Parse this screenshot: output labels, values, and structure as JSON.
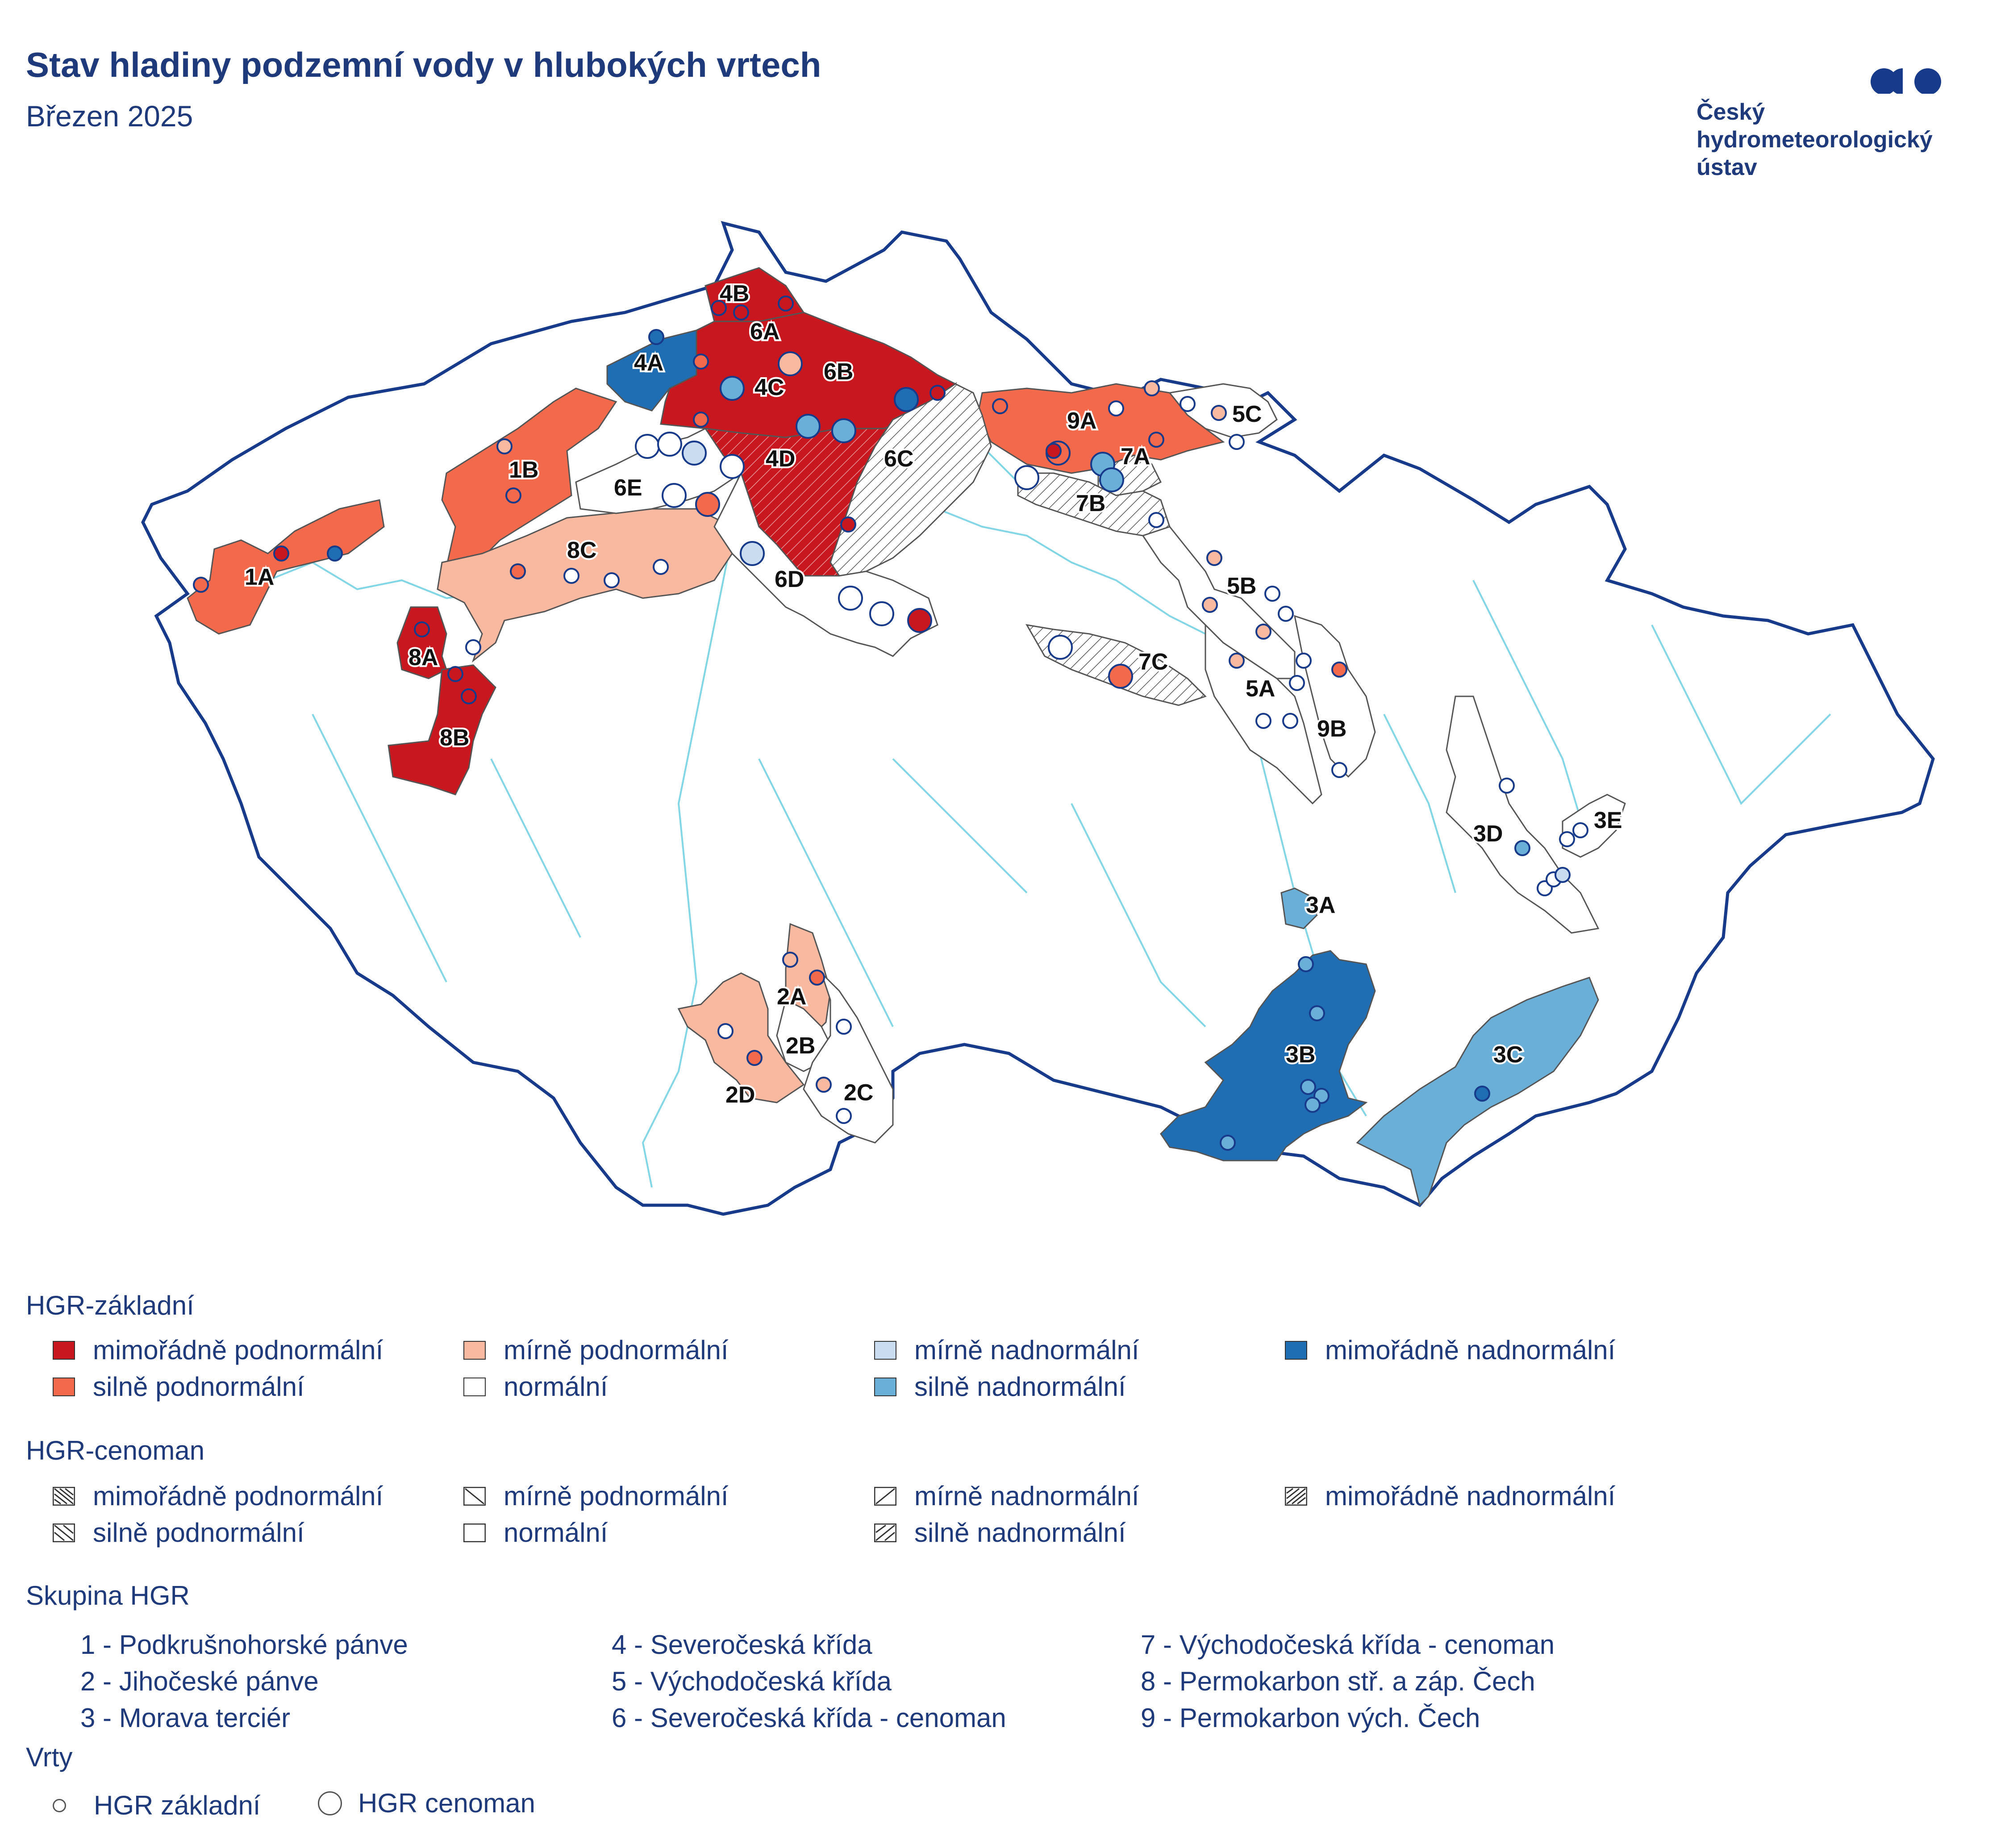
{
  "header": {
    "title": "Stav hladiny podzemní vody v hlubokých vrtech",
    "subtitle": "Březen 2025"
  },
  "logo": {
    "line1": "Český",
    "line2": "hydrometeorologický",
    "line3": "ústav",
    "mark_color": "#173a8a"
  },
  "colors": {
    "extreme_below": "#c8171e",
    "strong_below": "#f26a4b",
    "mild_below": "#f9b9a0",
    "normal": "#ffffff",
    "mild_above": "#c9dcf0",
    "strong_above": "#6aafd8",
    "extreme_above": "#1f6db3",
    "border": "#173a8a",
    "river": "#6ccfe0"
  },
  "map": {
    "region_labels": [
      "1A",
      "1B",
      "2A",
      "2B",
      "2C",
      "2D",
      "3A",
      "3B",
      "3C",
      "3D",
      "3E",
      "4A",
      "4B",
      "4C",
      "4D",
      "5A",
      "5B",
      "5C",
      "6A",
      "6B",
      "6C",
      "6D",
      "6E",
      "7A",
      "7B",
      "7C",
      "8A",
      "8B",
      "8C",
      "9A",
      "9B"
    ]
  },
  "legend": {
    "basic": {
      "heading": "HGR-základní",
      "items": [
        {
          "label": "mimořádně podnormální",
          "color": "#c8171e"
        },
        {
          "label": "mírně podnormální",
          "color": "#f9b9a0"
        },
        {
          "label": "mírně nadnormální",
          "color": "#c9dcf0"
        },
        {
          "label": "mimořádně nadnormální",
          "color": "#1f6db3"
        },
        {
          "label": "silně podnormální",
          "color": "#f26a4b"
        },
        {
          "label": "normální",
          "color": "#ffffff"
        },
        {
          "label": "silně nadnormální",
          "color": "#6aafd8"
        }
      ]
    },
    "cenoman": {
      "heading": "HGR-cenoman",
      "items": [
        {
          "label": "mimořádně podnormální"
        },
        {
          "label": "mírně podnormální"
        },
        {
          "label": "mírně nadnormální"
        },
        {
          "label": "mimořádně nadnormální"
        },
        {
          "label": "silně podnormální"
        },
        {
          "label": "normální"
        },
        {
          "label": "silně nadnormální"
        }
      ]
    },
    "groups": {
      "heading": "Skupina HGR",
      "items": [
        "1 - Podkrušnohorské pánve",
        "4 - Severočeská křída",
        "7 - Východočeská křída - cenoman",
        "2 - Jihočeské pánve",
        "5 - Východočeská křída",
        "8 - Permokarbon stř. a záp. Čech",
        "3 - Morava terciér",
        "6 - Severočeská křída - cenoman",
        "9 - Permokarbon vých. Čech"
      ]
    },
    "wells": {
      "heading": "Vrty",
      "basic": "HGR základní",
      "cenoman": "HGR cenoman"
    }
  }
}
